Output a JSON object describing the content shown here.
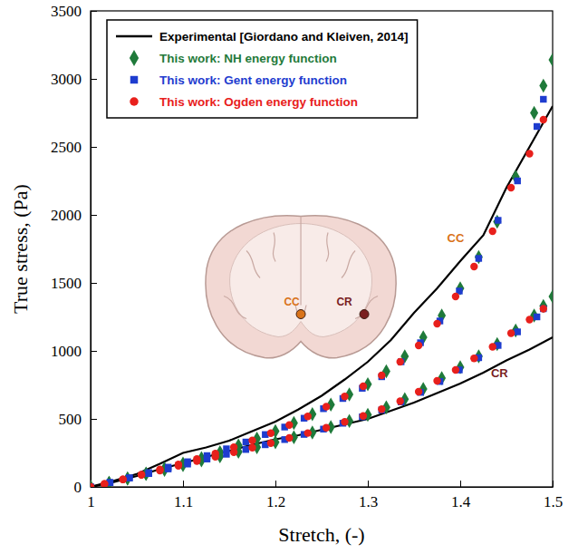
{
  "chart_data": {
    "type": "line",
    "x_label": "Stretch, (-)",
    "y_label": "True stress, (Pa)",
    "xlim": [
      1,
      1.5
    ],
    "ylim": [
      0,
      3500
    ],
    "xticks": [
      1,
      1.1,
      1.2,
      1.3,
      1.4,
      1.5
    ],
    "yticks": [
      0,
      500,
      1000,
      1500,
      2000,
      2500,
      3000,
      3500
    ],
    "grid": false,
    "legend": "upper left",
    "regions": [
      {
        "name": "CC",
        "color": "#d9731a"
      },
      {
        "name": "CR",
        "color": "#7a1f1f"
      }
    ],
    "series": [
      {
        "name": "Experimental [Giordano and Kleiven, 2014]",
        "color": "#000000",
        "type": "line",
        "line_style": "solid",
        "curves": [
          {
            "x": [
              1,
              1.025,
              1.05,
              1.075,
              1.1,
              1.125,
              1.15,
              1.175,
              1.2,
              1.225,
              1.25,
              1.275,
              1.3,
              1.325,
              1.35,
              1.375,
              1.4,
              1.425,
              1.45,
              1.475,
              1.5
            ],
            "values": [
              0,
              45,
              95,
              170,
              250,
              290,
              340,
              410,
              480,
              570,
              670,
              790,
              920,
              1080,
              1280,
              1460,
              1660,
              1850,
              2200,
              2500,
              2800
            ]
          },
          {
            "x": [
              1,
              1.025,
              1.05,
              1.075,
              1.1,
              1.125,
              1.15,
              1.175,
              1.2,
              1.225,
              1.25,
              1.275,
              1.3,
              1.325,
              1.35,
              1.375,
              1.4,
              1.425,
              1.45,
              1.475,
              1.5
            ],
            "values": [
              0,
              35,
              80,
              130,
              175,
              220,
              265,
              310,
              350,
              380,
              420,
              460,
              500,
              560,
              620,
              690,
              760,
              840,
              930,
              1010,
              1100
            ]
          }
        ]
      },
      {
        "name": "This work: NH energy function",
        "color": "#1f7a3a",
        "type": "scatter",
        "marker": "diamond",
        "curves": [
          {
            "x": [
              1,
              1.02,
              1.04,
              1.06,
              1.08,
              1.1,
              1.12,
              1.14,
              1.16,
              1.18,
              1.2,
              1.22,
              1.24,
              1.26,
              1.28,
              1.3,
              1.32,
              1.34,
              1.36,
              1.38,
              1.4,
              1.42,
              1.44,
              1.46,
              1.48,
              1.49,
              1.5
            ],
            "values": [
              0,
              30,
              62,
              98,
              135,
              172,
              212,
              255,
              305,
              355,
              410,
              470,
              535,
              605,
              680,
              755,
              850,
              960,
              1100,
              1260,
              1460,
              1690,
              1950,
              2280,
              2750,
              2950,
              3140
            ]
          },
          {
            "x": [
              1,
              1.02,
              1.04,
              1.06,
              1.08,
              1.1,
              1.12,
              1.14,
              1.16,
              1.18,
              1.2,
              1.22,
              1.24,
              1.26,
              1.28,
              1.3,
              1.32,
              1.34,
              1.36,
              1.38,
              1.4,
              1.42,
              1.44,
              1.46,
              1.48,
              1.49,
              1.5
            ],
            "values": [
              0,
              30,
              62,
              95,
              125,
              160,
              195,
              225,
              258,
              292,
              328,
              365,
              400,
              440,
              485,
              530,
              585,
              645,
              720,
              800,
              880,
              960,
              1050,
              1150,
              1260,
              1330,
              1400
            ]
          }
        ]
      },
      {
        "name": "This work: Gent energy function",
        "color": "#1e3ccf",
        "type": "scatter",
        "marker": "square",
        "curves": [
          {
            "x": [
              1,
              1.021,
              1.042,
              1.063,
              1.084,
              1.105,
              1.126,
              1.147,
              1.168,
              1.189,
              1.21,
              1.231,
              1.252,
              1.273,
              1.294,
              1.315,
              1.336,
              1.357,
              1.378,
              1.399,
              1.42,
              1.441,
              1.462,
              1.483,
              1.49
            ],
            "values": [
              0,
              32,
              66,
              105,
              145,
              185,
              230,
              280,
              330,
              385,
              440,
              505,
              575,
              650,
              725,
              810,
              920,
              1060,
              1220,
              1440,
              1680,
              1960,
              2250,
              2650,
              2850
            ]
          },
          {
            "x": [
              1,
              1.021,
              1.042,
              1.063,
              1.084,
              1.105,
              1.126,
              1.147,
              1.168,
              1.189,
              1.21,
              1.231,
              1.252,
              1.273,
              1.294,
              1.315,
              1.336,
              1.357,
              1.378,
              1.399,
              1.42,
              1.441,
              1.462,
              1.483,
              1.49
            ],
            "values": [
              0,
              32,
              66,
              98,
              132,
              168,
              205,
              240,
              275,
              310,
              348,
              386,
              425,
              468,
              515,
              565,
              625,
              695,
              775,
              860,
              950,
              1040,
              1140,
              1250,
              1310
            ]
          }
        ]
      },
      {
        "name": "This work: Ogden energy function",
        "color": "#e8201c",
        "type": "scatter",
        "marker": "circle",
        "curves": [
          {
            "x": [
              1,
              1.015,
              1.035,
              1.055,
              1.075,
              1.095,
              1.115,
              1.135,
              1.155,
              1.175,
              1.195,
              1.215,
              1.235,
              1.255,
              1.275,
              1.295,
              1.315,
              1.335,
              1.355,
              1.375,
              1.395,
              1.415,
              1.435,
              1.455,
              1.475,
              1.49
            ],
            "values": [
              0,
              22,
              55,
              90,
              128,
              165,
              205,
              245,
              292,
              342,
              395,
              455,
              518,
              590,
              665,
              740,
              820,
              920,
              1040,
              1200,
              1400,
              1620,
              1880,
              2200,
              2450,
              2700
            ]
          },
          {
            "x": [
              1,
              1.015,
              1.035,
              1.055,
              1.075,
              1.095,
              1.115,
              1.135,
              1.155,
              1.175,
              1.195,
              1.215,
              1.235,
              1.255,
              1.275,
              1.295,
              1.315,
              1.335,
              1.355,
              1.375,
              1.395,
              1.415,
              1.435,
              1.455,
              1.475,
              1.49
            ],
            "values": [
              0,
              22,
              55,
              88,
              120,
              155,
              190,
              222,
              255,
              288,
              322,
              360,
              396,
              435,
              478,
              522,
              572,
              630,
              700,
              780,
              860,
              945,
              1030,
              1130,
              1230,
              1310
            ]
          }
        ]
      }
    ]
  }
}
